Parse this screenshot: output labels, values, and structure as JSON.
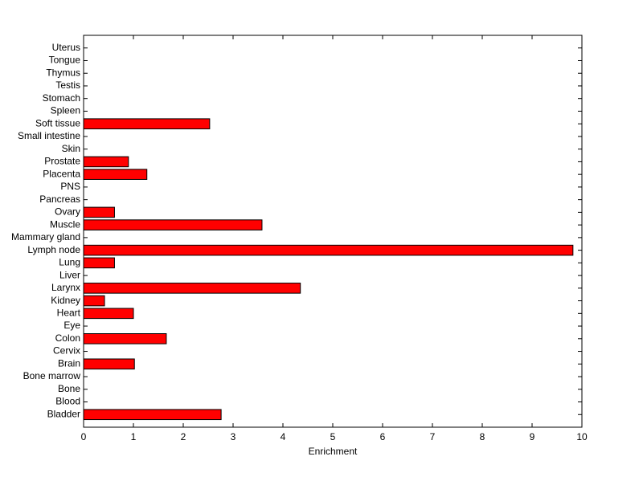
{
  "chart_data": {
    "type": "barh",
    "xlabel": "Enrichment",
    "categories": [
      "Bladder",
      "Blood",
      "Bone",
      "Bone marrow",
      "Brain",
      "Cervix",
      "Colon",
      "Eye",
      "Heart",
      "Kidney",
      "Larynx",
      "Liver",
      "Lung",
      "Lymph node",
      "Mammary gland",
      "Muscle",
      "Ovary",
      "Pancreas",
      "PNS",
      "Placenta",
      "Prostate",
      "Skin",
      "Small intestine",
      "Soft tissue",
      "Spleen",
      "Stomach",
      "Testis",
      "Thymus",
      "Tongue",
      "Uterus"
    ],
    "values": [
      2.76,
      0,
      0,
      0,
      1.02,
      0,
      1.66,
      0,
      1.0,
      0.42,
      4.35,
      0,
      0.62,
      9.82,
      0,
      3.58,
      0.62,
      0,
      0,
      1.27,
      0.9,
      0,
      0,
      2.53,
      0,
      0,
      0,
      0,
      0,
      0
    ],
    "color": "#ff0000",
    "xlim": [
      0,
      10
    ],
    "xticks": [
      0,
      1,
      2,
      3,
      4,
      5,
      6,
      7,
      8,
      9,
      10
    ]
  }
}
